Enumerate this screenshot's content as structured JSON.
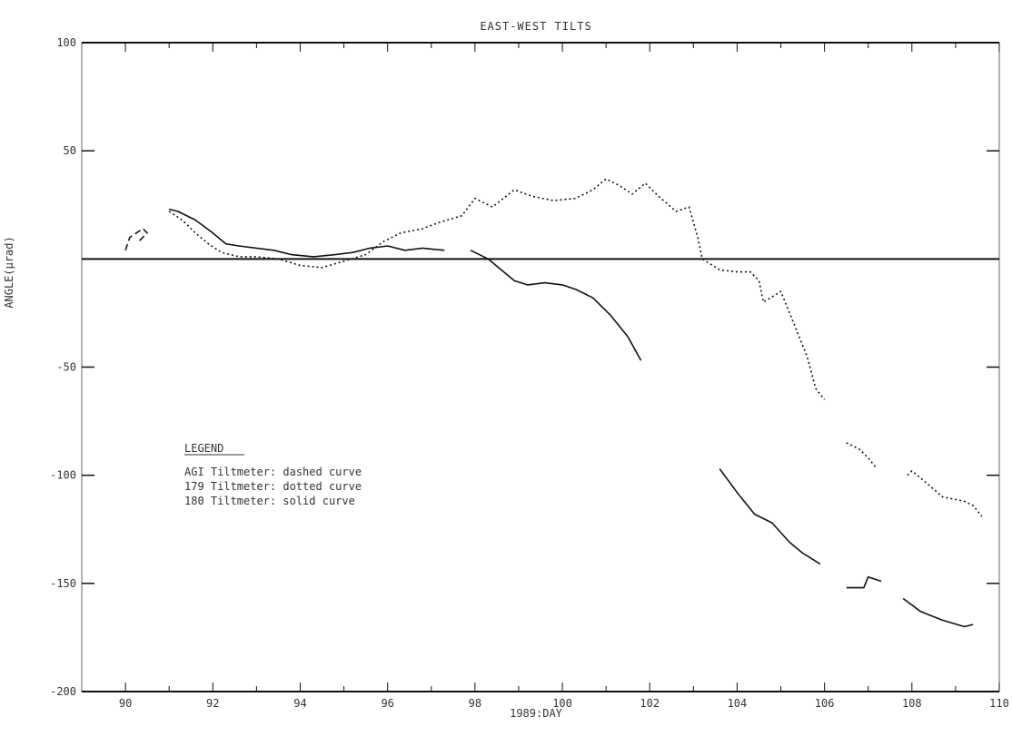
{
  "chart_data": {
    "type": "line",
    "title": "EAST-WEST TILTS",
    "xlabel": "1989:DAY",
    "ylabel": "ANGLE(µrad)",
    "xlim": [
      89,
      110
    ],
    "ylim": [
      -200,
      100
    ],
    "xticks": [
      90,
      92,
      94,
      96,
      98,
      100,
      102,
      104,
      106,
      108,
      110
    ],
    "xtick_labels": [
      "90",
      "92",
      "94",
      "96",
      "98",
      "100",
      "102",
      "104",
      "106",
      "108",
      "110"
    ],
    "yticks": [
      100,
      50,
      -50,
      -100,
      -150,
      -200
    ],
    "ytick_labels": [
      "100",
      "50",
      "-50",
      "-100",
      "-150",
      "-200"
    ],
    "reference_line_y": 0,
    "grid": false,
    "legend": {
      "title": "LEGEND",
      "entries": [
        "AGI Tiltmeter: dashed curve",
        "179 Tiltmeter: dotted curve",
        "180 Tiltmeter: solid curve"
      ],
      "placement": "lower-left"
    },
    "series": [
      {
        "name": "AGI Tiltmeter",
        "style": "dashed",
        "segments": [
          [
            [
              90.0,
              4
            ],
            [
              90.1,
              10
            ],
            [
              90.4,
              14
            ],
            [
              90.5,
              12
            ],
            [
              90.3,
              8
            ]
          ]
        ]
      },
      {
        "name": "179 Tiltmeter",
        "style": "dotted",
        "segments": [
          [
            [
              91.0,
              22
            ],
            [
              91.3,
              18
            ],
            [
              91.6,
              12
            ],
            [
              91.9,
              7
            ],
            [
              92.2,
              3
            ],
            [
              92.6,
              1
            ],
            [
              93.0,
              1
            ],
            [
              93.5,
              0
            ],
            [
              94.0,
              -3
            ],
            [
              94.5,
              -4
            ],
            [
              95.0,
              -1
            ],
            [
              95.5,
              2
            ],
            [
              95.9,
              8
            ],
            [
              96.3,
              12
            ],
            [
              96.8,
              14
            ],
            [
              97.2,
              17
            ],
            [
              97.7,
              20
            ],
            [
              98.0,
              28
            ],
            [
              98.4,
              24
            ],
            [
              98.9,
              32
            ],
            [
              99.3,
              29
            ],
            [
              99.8,
              27
            ],
            [
              100.3,
              28
            ],
            [
              100.7,
              32
            ],
            [
              101.0,
              37
            ],
            [
              101.3,
              34
            ],
            [
              101.6,
              30
            ],
            [
              101.9,
              35
            ],
            [
              102.2,
              29
            ],
            [
              102.6,
              22
            ],
            [
              102.9,
              24
            ],
            [
              103.1,
              10
            ],
            [
              103.2,
              0
            ],
            [
              103.6,
              -5
            ],
            [
              104.0,
              -6
            ],
            [
              104.3,
              -6
            ],
            [
              104.5,
              -10
            ],
            [
              104.6,
              -20
            ],
            [
              105.0,
              -15
            ],
            [
              105.3,
              -30
            ],
            [
              105.6,
              -45
            ],
            [
              105.8,
              -60
            ],
            [
              106.0,
              -65
            ]
          ],
          [
            [
              106.5,
              -85
            ],
            [
              106.8,
              -88
            ],
            [
              107.0,
              -92
            ],
            [
              107.2,
              -97
            ]
          ],
          [
            [
              107.9,
              -100
            ],
            [
              108.0,
              -98
            ],
            [
              108.3,
              -103
            ],
            [
              108.7,
              -110
            ],
            [
              109.2,
              -112
            ],
            [
              109.4,
              -114
            ],
            [
              109.6,
              -119
            ]
          ]
        ]
      },
      {
        "name": "180 Tiltmeter",
        "style": "solid",
        "segments": [
          [
            [
              91.0,
              23
            ],
            [
              91.2,
              22
            ],
            [
              91.6,
              18
            ],
            [
              92.0,
              12
            ],
            [
              92.3,
              7
            ],
            [
              92.6,
              6
            ],
            [
              93.0,
              5
            ],
            [
              93.4,
              4
            ],
            [
              93.8,
              2
            ],
            [
              94.3,
              1
            ],
            [
              94.8,
              2
            ],
            [
              95.2,
              3
            ],
            [
              95.6,
              5
            ],
            [
              96.0,
              6
            ],
            [
              96.4,
              4
            ],
            [
              96.8,
              5
            ],
            [
              97.3,
              4
            ]
          ],
          [
            [
              97.9,
              4
            ],
            [
              98.3,
              0
            ],
            [
              98.6,
              -5
            ],
            [
              98.9,
              -10
            ],
            [
              99.2,
              -12
            ],
            [
              99.6,
              -11
            ],
            [
              100.0,
              -12
            ],
            [
              100.3,
              -14
            ],
            [
              100.7,
              -18
            ],
            [
              101.1,
              -26
            ],
            [
              101.5,
              -36
            ],
            [
              101.8,
              -47
            ]
          ],
          [
            [
              103.6,
              -97
            ],
            [
              104.0,
              -108
            ],
            [
              104.4,
              -118
            ],
            [
              104.8,
              -122
            ],
            [
              105.2,
              -131
            ],
            [
              105.5,
              -136
            ],
            [
              105.9,
              -141
            ]
          ],
          [
            [
              106.5,
              -152
            ],
            [
              106.9,
              -152
            ],
            [
              107.0,
              -147
            ],
            [
              107.3,
              -149
            ]
          ],
          [
            [
              107.8,
              -157
            ],
            [
              108.2,
              -163
            ],
            [
              108.7,
              -167
            ],
            [
              109.2,
              -170
            ],
            [
              109.4,
              -169
            ]
          ]
        ]
      }
    ]
  }
}
